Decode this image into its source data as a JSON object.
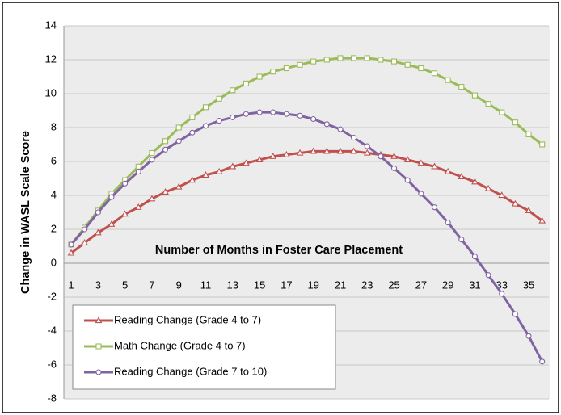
{
  "chart_data": {
    "type": "line",
    "x_label": "Number of Months in Foster Care Placement",
    "y_label": "Change in WASL Scale Score",
    "categories": [
      1,
      null,
      3,
      null,
      5,
      null,
      7,
      null,
      9,
      null,
      11,
      null,
      13,
      null,
      15,
      null,
      17,
      null,
      19,
      null,
      21,
      null,
      23,
      null,
      25,
      null,
      27,
      null,
      29,
      null,
      31,
      null,
      33,
      null,
      35,
      null
    ],
    "ylim": [
      -8,
      14
    ],
    "yticks": [
      -8,
      -6,
      -4,
      -2,
      0,
      2,
      4,
      6,
      8,
      10,
      12,
      14
    ],
    "grid": true,
    "legend": "lower left",
    "series": [
      {
        "name": "Reading Change (Grade 4 to 7)",
        "color": "#c0504d",
        "marker": "triangle",
        "values": [
          0.6,
          1.2,
          1.8,
          2.3,
          2.9,
          3.3,
          3.8,
          4.2,
          4.5,
          4.9,
          5.2,
          5.4,
          5.7,
          5.9,
          6.1,
          6.3,
          6.4,
          6.5,
          6.6,
          6.6,
          6.6,
          6.6,
          6.5,
          6.4,
          6.3,
          6.1,
          5.9,
          5.7,
          5.4,
          5.1,
          4.8,
          4.4,
          4.0,
          3.5,
          3.1,
          2.5
        ]
      },
      {
        "name": "Math Change (Grade 4 to 7)",
        "color": "#9bbb59",
        "marker": "square",
        "values": [
          1.1,
          2.1,
          3.1,
          4.1,
          4.9,
          5.7,
          6.5,
          7.2,
          8.0,
          8.6,
          9.2,
          9.7,
          10.2,
          10.6,
          11.0,
          11.3,
          11.5,
          11.7,
          11.9,
          12.0,
          12.1,
          12.1,
          12.1,
          12.0,
          11.9,
          11.7,
          11.5,
          11.2,
          10.8,
          10.4,
          9.9,
          9.4,
          8.9,
          8.3,
          7.6,
          7.0
        ]
      },
      {
        "name": "Reading Change (Grade 7 to 10)",
        "color": "#8064a2",
        "marker": "circle",
        "values": [
          1.1,
          2.0,
          3.0,
          3.9,
          4.7,
          5.4,
          6.1,
          6.7,
          7.2,
          7.7,
          8.1,
          8.4,
          8.6,
          8.8,
          8.9,
          8.9,
          8.8,
          8.7,
          8.5,
          8.2,
          7.9,
          7.4,
          6.9,
          6.3,
          5.6,
          4.9,
          4.1,
          3.3,
          2.4,
          1.4,
          0.4,
          -0.7,
          -1.8,
          -3.0,
          -4.3,
          -5.8
        ]
      }
    ]
  }
}
